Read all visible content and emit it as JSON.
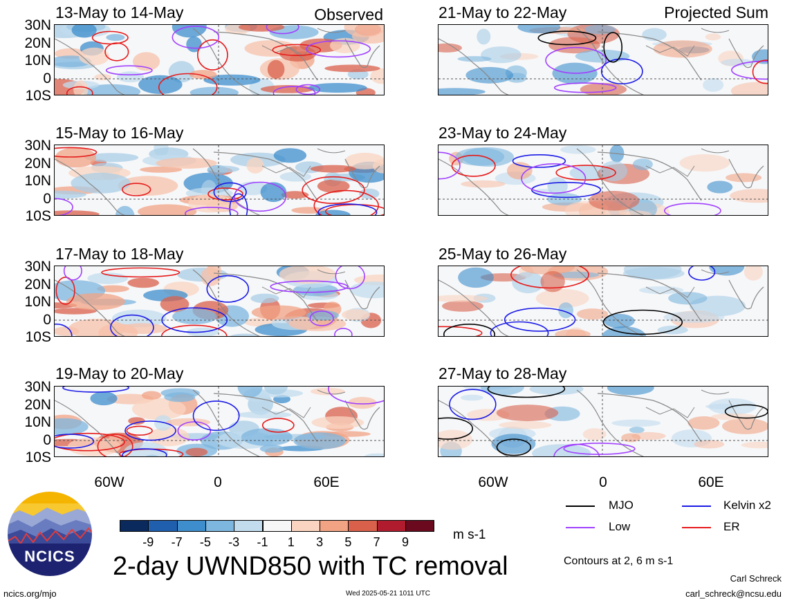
{
  "left_header": "Observed",
  "right_header": "Projected Sum",
  "left_panels": [
    "13-May to 14-May",
    "15-May to 16-May",
    "17-May to 18-May",
    "19-May to 20-May"
  ],
  "right_panels": [
    "21-May to 22-May",
    "23-May to 24-May",
    "25-May to 26-May",
    "27-May to 28-May"
  ],
  "lat_labels": [
    "30N",
    "20N",
    "10N",
    "0",
    "10S"
  ],
  "lon_labels": [
    "60W",
    "0",
    "60E"
  ],
  "colorbar": {
    "labels": [
      "-9",
      "-7",
      "-5",
      "-3",
      "-1",
      "1",
      "3",
      "5",
      "7",
      "9"
    ],
    "colors": [
      "#0a2a5e",
      "#1f5fae",
      "#3e8dcc",
      "#7db6de",
      "#c2dcee",
      "#f7f7f7",
      "#fad4c0",
      "#f2a384",
      "#d9604b",
      "#b01c2e",
      "#6b0a1e"
    ],
    "units": "m s-1"
  },
  "legend": {
    "mjo": {
      "label": "MJO",
      "color": "#000000"
    },
    "kelvin": {
      "label": "Kelvin x2",
      "color": "#1a1ae6"
    },
    "low": {
      "label": "Low",
      "color": "#a040ff"
    },
    "er": {
      "label": "ER",
      "color": "#e61a1a"
    }
  },
  "contours_note": "Contours at 2, 6 m s-1",
  "main_title": "2-day UWND850 with TC removal",
  "logo_text": "NCICS",
  "footer_left": "ncics.org/mjo",
  "footer_timestamp": "Wed 2025-05-21 1011 UTC",
  "author": "Carl Schreck",
  "email": "carl_schreck@ncsu.edu"
}
